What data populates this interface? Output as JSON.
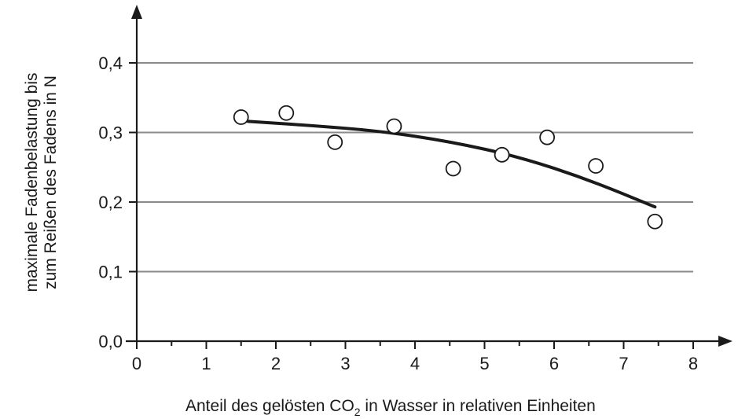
{
  "chart_data": {
    "type": "scatter",
    "xlabel": "Anteil des gelösten CO",
    "xlabel_sub": "2",
    "xlabel_rest": " in Wasser in relativen Einheiten",
    "ylabel_line1": "maximale Fadenbelastung bis",
    "ylabel_line2": "zum Reißen des Fadens in N",
    "xlim": [
      0,
      8
    ],
    "ylim": [
      0,
      0.4
    ],
    "x_ticks": [
      0,
      1,
      2,
      3,
      4,
      5,
      6,
      7,
      8
    ],
    "x_tick_labels": [
      "0",
      "1",
      "2",
      "3",
      "4",
      "5",
      "6",
      "7",
      "8"
    ],
    "y_ticks": [
      0,
      0.1,
      0.2,
      0.3,
      0.4
    ],
    "y_tick_labels": [
      "0,0",
      "0,1",
      "0,2",
      "0,3",
      "0,4"
    ],
    "grid": "horizontal",
    "points": [
      {
        "x": 1.5,
        "y": 0.322
      },
      {
        "x": 2.15,
        "y": 0.328
      },
      {
        "x": 2.85,
        "y": 0.286
      },
      {
        "x": 3.7,
        "y": 0.309
      },
      {
        "x": 4.55,
        "y": 0.248
      },
      {
        "x": 5.25,
        "y": 0.268
      },
      {
        "x": 5.9,
        "y": 0.293
      },
      {
        "x": 6.6,
        "y": 0.252
      },
      {
        "x": 7.45,
        "y": 0.172
      }
    ],
    "trend": [
      {
        "x": 1.6,
        "y": 0.316
      },
      {
        "x": 2.5,
        "y": 0.31
      },
      {
        "x": 3.5,
        "y": 0.302
      },
      {
        "x": 4.5,
        "y": 0.287
      },
      {
        "x": 5.5,
        "y": 0.265
      },
      {
        "x": 6.5,
        "y": 0.232
      },
      {
        "x": 7.45,
        "y": 0.193
      }
    ]
  }
}
